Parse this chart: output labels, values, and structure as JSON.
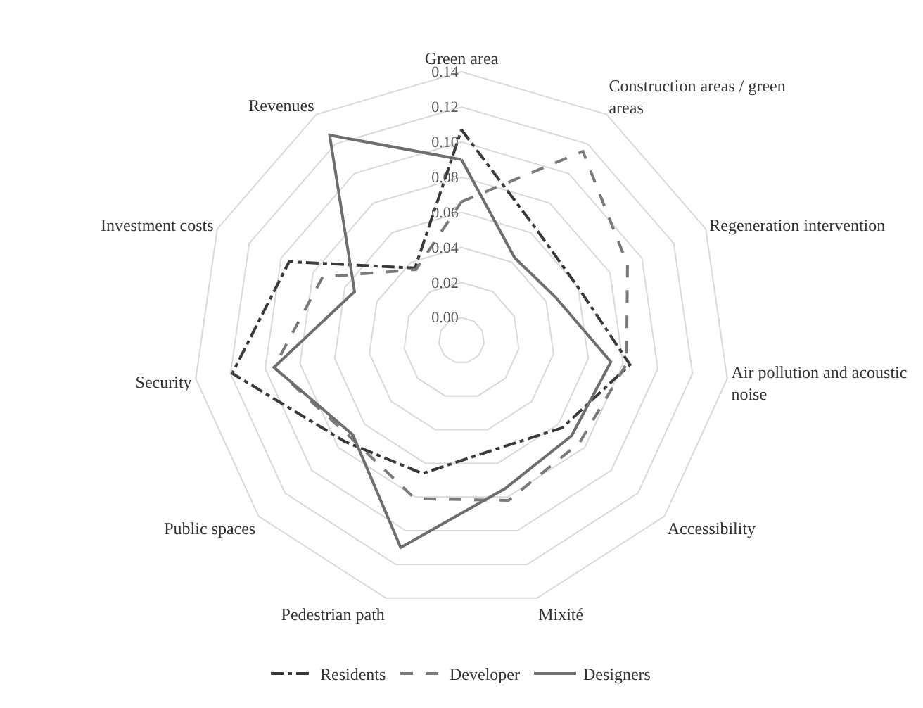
{
  "chart_data": {
    "type": "radar",
    "categories": [
      "Green area",
      "Construction areas / green areas",
      "Regeneration intervention",
      "Air pollution and acoustic noise",
      "Accessibility",
      "Mixité",
      "Pedestrian path",
      "Public spaces",
      "Security",
      "Investment costs",
      "Revenues"
    ],
    "series": [
      {
        "name": "Residents",
        "color": "#3a3a3a",
        "line_style": "dashdot",
        "values": [
          0.107,
          0.064,
          0.06,
          0.084,
          0.063,
          0.052,
          0.066,
          0.075,
          0.119,
          0.095,
          0.036
        ]
      },
      {
        "name": "Developer",
        "color": "#7a7a7a",
        "line_style": "dashed",
        "values": [
          0.066,
          0.115,
          0.091,
          0.082,
          0.076,
          0.082,
          0.081,
          0.071,
          0.095,
          0.074,
          0.035
        ]
      },
      {
        "name": "Designers",
        "color": "#6e6e6e",
        "line_style": "solid",
        "values": [
          0.09,
          0.043,
          0.046,
          0.073,
          0.07,
          0.075,
          0.11,
          0.069,
          0.095,
          0.054,
          0.126
        ]
      }
    ],
    "ylim": [
      -0.013,
      0.14
    ],
    "yticks": [
      {
        "value": 0,
        "label": "0.00"
      },
      {
        "value": 0.02,
        "label": "0.02"
      },
      {
        "value": 0.04,
        "label": "0.04"
      },
      {
        "value": 0.06,
        "label": "0.06"
      },
      {
        "value": 0.08,
        "label": "0.08"
      },
      {
        "value": 0.1,
        "label": "0.10"
      },
      {
        "value": 0.12,
        "label": "0.12"
      },
      {
        "value": 0.14,
        "label": "0.14"
      }
    ],
    "grid": true,
    "legend": "bottom",
    "marker": "none"
  }
}
